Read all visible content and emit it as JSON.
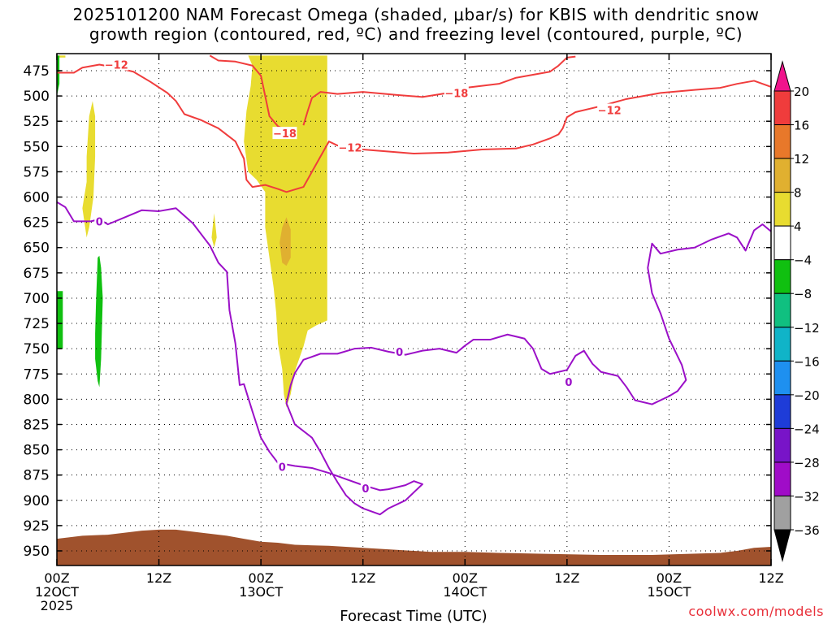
{
  "chart_data": {
    "type": "heatmap",
    "title": "2025101200 NAM Forecast Omega (shaded, μbar/s) for KBIS with dendritic snow growth region (contoured, red, ºC) and freezing level (contoured, purple, ºC)",
    "title_lines": [
      "2025101200 NAM Forecast Omega (shaded, μbar/s) for KBIS with dendritic snow",
      "growth region (contoured, red, ºC) and freezing level (contoured, purple, ºC)"
    ],
    "xlabel": "Forecast Time (UTC)",
    "ylabel": "",
    "x_ticks": [
      {
        "hour": 0,
        "lines": [
          "00Z",
          "12OCT",
          "2025"
        ]
      },
      {
        "hour": 12,
        "lines": [
          "12Z"
        ]
      },
      {
        "hour": 24,
        "lines": [
          "00Z",
          "13OCT"
        ]
      },
      {
        "hour": 36,
        "lines": [
          "12Z"
        ]
      },
      {
        "hour": 48,
        "lines": [
          "00Z",
          "14OCT"
        ]
      },
      {
        "hour": 60,
        "lines": [
          "12Z"
        ]
      },
      {
        "hour": 72,
        "lines": [
          "00Z",
          "15OCT"
        ]
      },
      {
        "hour": 84,
        "lines": [
          "12Z"
        ]
      }
    ],
    "xlim_hours": [
      0,
      84
    ],
    "y_ticks": [
      475,
      500,
      525,
      550,
      575,
      600,
      625,
      650,
      675,
      700,
      725,
      750,
      775,
      800,
      825,
      850,
      875,
      900,
      925,
      950
    ],
    "ylim_mb": [
      460,
      970
    ],
    "grid": true,
    "colorbar": {
      "labels": [
        "20",
        "16",
        "12",
        "8",
        "4",
        "−4",
        "−8",
        "−12",
        "−16",
        "−20",
        "−24",
        "−28",
        "−32",
        "−36"
      ],
      "colors": [
        "#f0148c",
        "#f03c3c",
        "#e8782a",
        "#e0b030",
        "#e8dc30",
        "#ffffff",
        "#10c010",
        "#10c080",
        "#10b4c8",
        "#1e90f0",
        "#1e3cd8",
        "#7814c8",
        "#a00cc8",
        "#a0a0a0"
      ]
    },
    "contour_labels": {
      "dgz_red": [
        "−12",
        "−18",
        "−18",
        "−12",
        "−12"
      ],
      "freezing_purple": [
        "0",
        "0",
        "0",
        "0",
        "0"
      ]
    },
    "series": [
      {
        "name": "red",
        "kind": "dgz -12/-18",
        "color": "#f03c3c",
        "contours": [
          [
            [
              0,
              477
            ],
            [
              2,
              477
            ],
            [
              3,
              472
            ],
            [
              5,
              469
            ],
            [
              7,
              472
            ],
            [
              9,
              476
            ],
            [
              11,
              486
            ],
            [
              13,
              497
            ],
            [
              14,
              505
            ],
            [
              15,
              518
            ],
            [
              17,
              524
            ],
            [
              19,
              532
            ],
            [
              21,
              545
            ],
            [
              22,
              562
            ],
            [
              22.3,
              583
            ],
            [
              23,
              590
            ],
            [
              24.5,
              588
            ],
            [
              26,
              592
            ],
            [
              27,
              595
            ],
            [
              29,
              590
            ],
            [
              30,
              575
            ],
            [
              31,
              560
            ],
            [
              32,
              545
            ],
            [
              33,
              549
            ],
            [
              36,
              553
            ],
            [
              39,
              555
            ],
            [
              42,
              557
            ],
            [
              46,
              556
            ],
            [
              50,
              553
            ],
            [
              54,
              552
            ],
            [
              56,
              548
            ],
            [
              58,
              542
            ],
            [
              59,
              538
            ],
            [
              59.5,
              532
            ],
            [
              60,
              521
            ],
            [
              61,
              516
            ],
            [
              64,
              510
            ],
            [
              67,
              503
            ],
            [
              71,
              497
            ],
            [
              75,
              494
            ],
            [
              78,
              492
            ],
            [
              80,
              488
            ],
            [
              82,
              485
            ],
            [
              84,
              491
            ]
          ],
          [
            [
              18,
              460
            ],
            [
              19,
              465
            ],
            [
              21,
              466
            ],
            [
              23,
              470
            ],
            [
              24,
              480
            ],
            [
              24.5,
              500
            ],
            [
              25,
              520
            ],
            [
              26,
              530
            ],
            [
              27,
              534
            ],
            [
              28,
              534
            ]
          ],
          [
            [
              29,
              529
            ],
            [
              29.5,
              515
            ],
            [
              30,
              502
            ],
            [
              31,
              496
            ],
            [
              33,
              498
            ],
            [
              36,
              496
            ],
            [
              40,
              499
            ],
            [
              43,
              501
            ],
            [
              46,
              497
            ],
            [
              48,
              492
            ],
            [
              52,
              488
            ],
            [
              54,
              482
            ],
            [
              56,
              479
            ],
            [
              58,
              476
            ],
            [
              59,
              470
            ],
            [
              60,
              462
            ],
            [
              61,
              461
            ]
          ]
        ]
      },
      {
        "name": "purple",
        "kind": "freezing level 0",
        "color": "#9b10c8",
        "contours": [
          [
            [
              0,
              605
            ],
            [
              1,
              610
            ],
            [
              2,
              624
            ],
            [
              4,
              624
            ],
            [
              5,
              622
            ],
            [
              6,
              627
            ],
            [
              8,
              620
            ],
            [
              10,
              613
            ],
            [
              12,
              614
            ],
            [
              14,
              611
            ],
            [
              16,
              626
            ],
            [
              18,
              648
            ],
            [
              19,
              665
            ],
            [
              20,
              674
            ],
            [
              20.3,
              712
            ],
            [
              21,
              745
            ],
            [
              21.5,
              786
            ],
            [
              22,
              785
            ],
            [
              23,
              812
            ],
            [
              24,
              838
            ],
            [
              25,
              852
            ],
            [
              26,
              863
            ],
            [
              28,
              866
            ],
            [
              30,
              868
            ],
            [
              32,
              873
            ],
            [
              34,
              879
            ],
            [
              36,
              885
            ],
            [
              38,
              890
            ],
            [
              39,
              889
            ],
            [
              41,
              885
            ],
            [
              42,
              881
            ],
            [
              43,
              884
            ],
            [
              42,
              892
            ],
            [
              41,
              900
            ],
            [
              39,
              908
            ],
            [
              38,
              914
            ],
            [
              36,
              908
            ],
            [
              35,
              903
            ],
            [
              34,
              895
            ],
            [
              33,
              882
            ],
            [
              32,
              868
            ],
            [
              31,
              852
            ],
            [
              30,
              838
            ],
            [
              28,
              825
            ],
            [
              27,
              804
            ],
            [
              27.5,
              786
            ],
            [
              28,
              774
            ],
            [
              29,
              761
            ],
            [
              31,
              755
            ],
            [
              33,
              755
            ],
            [
              35,
              750
            ],
            [
              37,
              749
            ],
            [
              39,
              753
            ],
            [
              41,
              756
            ],
            [
              43,
              752
            ],
            [
              45,
              750
            ],
            [
              47,
              754
            ],
            [
              48,
              747
            ],
            [
              49,
              741
            ],
            [
              51,
              741
            ],
            [
              53,
              736
            ],
            [
              55,
              740
            ],
            [
              56,
              750
            ],
            [
              57,
              770
            ],
            [
              58,
              775
            ],
            [
              60,
              771
            ],
            [
              61,
              757
            ],
            [
              62,
              752
            ],
            [
              63,
              765
            ],
            [
              64,
              773
            ],
            [
              66,
              777
            ],
            [
              67,
              788
            ],
            [
              68,
              801
            ],
            [
              70,
              805
            ],
            [
              72,
              797
            ],
            [
              73,
              792
            ],
            [
              74,
              781
            ],
            [
              73.5,
              766
            ],
            [
              72,
              740
            ],
            [
              71,
              715
            ],
            [
              70,
              695
            ],
            [
              69.5,
              670
            ],
            [
              70,
              646
            ],
            [
              71,
              656
            ],
            [
              73,
              652
            ],
            [
              75,
              650
            ],
            [
              77,
              642
            ],
            [
              79,
              636
            ],
            [
              80,
              640
            ],
            [
              81,
              653
            ],
            [
              82,
              633
            ],
            [
              83,
              627
            ],
            [
              84,
              634
            ]
          ]
        ]
      }
    ],
    "omega_regions": [
      {
        "value": "4 to 8",
        "color": "#e8dc30",
        "outline": [
          [
            -0.4,
            460
          ],
          [
            -0.4,
            462
          ],
          [
            1,
            462
          ],
          [
            1,
            460
          ]
        ]
      },
      {
        "value": "4 to 8",
        "color": "#e8dc30",
        "outline": [
          [
            3,
            611
          ],
          [
            3.5,
            585
          ],
          [
            3.5,
            560
          ],
          [
            3.8,
            520
          ],
          [
            4.2,
            505
          ],
          [
            4.5,
            520
          ],
          [
            4.5,
            560
          ],
          [
            4.3,
            600
          ],
          [
            3.8,
            630
          ],
          [
            3.5,
            640
          ]
        ]
      },
      {
        "value": "4 to 8",
        "color": "#e8dc30",
        "outline": [
          [
            18.2,
            640
          ],
          [
            18.5,
            616
          ],
          [
            18.8,
            640
          ],
          [
            18.5,
            650
          ]
        ]
      },
      {
        "value": "4 to 8",
        "color": "#e8dc30",
        "outline": [
          [
            22.5,
            460
          ],
          [
            31.8,
            460
          ],
          [
            31.8,
            722
          ],
          [
            30.5,
            727
          ],
          [
            29.5,
            732
          ],
          [
            29,
            748
          ],
          [
            28.5,
            760
          ],
          [
            28,
            772
          ],
          [
            27.5,
            795
          ],
          [
            27,
            808
          ],
          [
            26.7,
            795
          ],
          [
            26.5,
            770
          ],
          [
            26,
            745
          ],
          [
            25.8,
            715
          ],
          [
            25.5,
            690
          ],
          [
            25,
            660
          ],
          [
            24.5,
            630
          ],
          [
            24.5,
            595
          ],
          [
            23.5,
            583
          ],
          [
            22.5,
            575
          ],
          [
            22,
            545
          ],
          [
            22.3,
            515
          ],
          [
            22.8,
            490
          ],
          [
            23,
            470
          ]
        ]
      },
      {
        "value": "8 to 12",
        "color": "#e0b030",
        "outline": [
          [
            26.5,
            630
          ],
          [
            27,
            620
          ],
          [
            27.5,
            632
          ],
          [
            27.5,
            660
          ],
          [
            27,
            668
          ],
          [
            26.5,
            665
          ],
          [
            26.2,
            645
          ]
        ]
      }
    ],
    "omega_negative_regions": [
      {
        "value": "-4 to -8",
        "color": "#10c010",
        "outline": [
          [
            -0.3,
            460
          ],
          [
            0.3,
            460
          ],
          [
            0.3,
            488
          ],
          [
            0,
            500
          ],
          [
            -0.3,
            488
          ]
        ]
      },
      {
        "value": "-4 to -8",
        "color": "#10c010",
        "outline": [
          [
            -0.3,
            693
          ],
          [
            0.7,
            693
          ],
          [
            0.7,
            750
          ],
          [
            -0.3,
            750
          ]
        ]
      },
      {
        "value": "-4 to -8",
        "color": "#10c010",
        "outline": [
          [
            4.5,
            735
          ],
          [
            4.6,
            705
          ],
          [
            4.8,
            660
          ],
          [
            5,
            658
          ],
          [
            5.2,
            670
          ],
          [
            5.4,
            700
          ],
          [
            5.3,
            730
          ],
          [
            5.2,
            760
          ],
          [
            5,
            788
          ],
          [
            4.8,
            782
          ],
          [
            4.5,
            760
          ]
        ]
      }
    ],
    "terrain": {
      "color": "#a0522d",
      "surface_mb": [
        [
          0,
          938
        ],
        [
          3,
          935
        ],
        [
          6,
          934
        ],
        [
          8,
          932
        ],
        [
          10,
          930
        ],
        [
          12,
          929
        ],
        [
          14,
          929
        ],
        [
          16,
          931
        ],
        [
          18,
          933
        ],
        [
          20,
          935
        ],
        [
          22,
          938
        ],
        [
          24,
          941
        ],
        [
          26,
          942
        ],
        [
          28,
          944
        ],
        [
          32,
          945
        ],
        [
          36,
          947
        ],
        [
          40,
          949
        ],
        [
          44,
          951
        ],
        [
          48,
          951
        ],
        [
          52,
          952
        ],
        [
          58,
          953
        ],
        [
          64,
          954
        ],
        [
          70,
          954
        ],
        [
          74,
          953
        ],
        [
          78,
          952
        ],
        [
          80,
          950
        ],
        [
          82,
          947
        ],
        [
          84,
          946
        ]
      ]
    }
  },
  "footer": {
    "source": "coolwx.com/models"
  }
}
